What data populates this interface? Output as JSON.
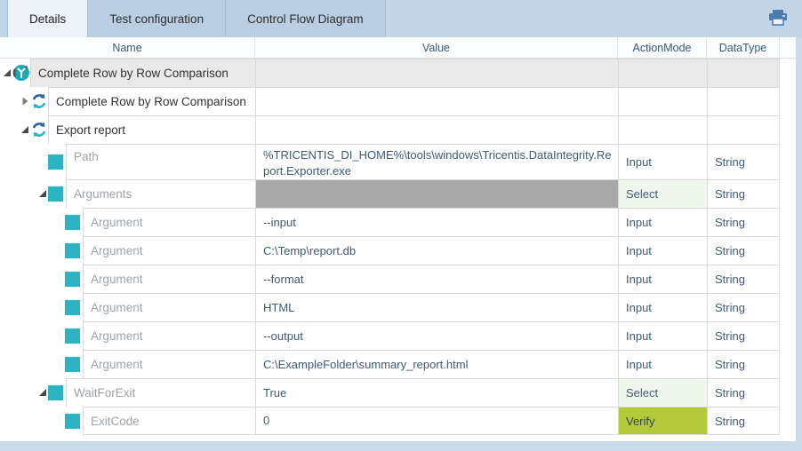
{
  "tabs": [
    {
      "label": "Details",
      "active": true
    },
    {
      "label": "Test configuration",
      "active": false
    },
    {
      "label": "Control Flow Diagram",
      "active": false
    }
  ],
  "toolbar": {
    "print_icon": "printer-icon"
  },
  "colors": {
    "accent_teal": "#2cb4c4",
    "verify_green": "#b4ca3a",
    "select_green_bg": "#f0f8ee",
    "selected_value_gray": "#a8a8a8",
    "group_row_gray": "#e9e9e9",
    "tab_bar_blue": "#c3d6e8",
    "refresh_blue": "#2a67a5"
  },
  "grid": {
    "columns": [
      "Name",
      "Value",
      "ActionMode",
      "DataType"
    ],
    "rows": [
      {
        "level": 0,
        "icon": "flow-icon",
        "expander": "expanded",
        "name": "Complete Row by Row Comparison",
        "value": "",
        "actionMode": "",
        "dataType": "",
        "nameStyle": "dark",
        "rowStyle": "group-header"
      },
      {
        "level": 1,
        "icon": "refresh-icon",
        "expander": "collapsed",
        "name": "Complete Row by Row Comparison",
        "value": "",
        "actionMode": "",
        "dataType": "",
        "nameStyle": "dark"
      },
      {
        "level": 1,
        "icon": "refresh-icon",
        "expander": "expanded",
        "name": "Export report",
        "value": "",
        "actionMode": "",
        "dataType": "",
        "nameStyle": "dark"
      },
      {
        "level": 2,
        "icon": "value-square-icon",
        "expander": null,
        "name": "Path",
        "value": "%TRICENTIS_DI_HOME%\\tools\\windows\\Tricentis.DataIntegrity.Report.Exporter.exe",
        "actionMode": "Input",
        "dataType": "String",
        "nameStyle": "muted",
        "tall": true
      },
      {
        "level": 2,
        "icon": "value-square-icon",
        "expander": "expanded",
        "name": "Arguments",
        "value": "",
        "actionMode": "Select",
        "dataType": "String",
        "nameStyle": "muted",
        "valueStyle": "grayfill",
        "actionStyle": "select"
      },
      {
        "level": 3,
        "icon": "value-square-icon",
        "expander": null,
        "name": "Argument",
        "value": "--input",
        "actionMode": "Input",
        "dataType": "String",
        "nameStyle": "muted"
      },
      {
        "level": 3,
        "icon": "value-square-icon",
        "expander": null,
        "name": "Argument",
        "value": "C:\\Temp\\report.db",
        "actionMode": "Input",
        "dataType": "String",
        "nameStyle": "muted"
      },
      {
        "level": 3,
        "icon": "value-square-icon",
        "expander": null,
        "name": "Argument",
        "value": "--format",
        "actionMode": "Input",
        "dataType": "String",
        "nameStyle": "muted"
      },
      {
        "level": 3,
        "icon": "value-square-icon",
        "expander": null,
        "name": "Argument",
        "value": "HTML",
        "actionMode": "Input",
        "dataType": "String",
        "nameStyle": "muted"
      },
      {
        "level": 3,
        "icon": "value-square-icon",
        "expander": null,
        "name": "Argument",
        "value": "--output",
        "actionMode": "Input",
        "dataType": "String",
        "nameStyle": "muted"
      },
      {
        "level": 3,
        "icon": "value-square-icon",
        "expander": null,
        "name": "Argument",
        "value": "C:\\ExampleFolder\\summary_report.html",
        "actionMode": "Input",
        "dataType": "String",
        "nameStyle": "muted"
      },
      {
        "level": 2,
        "icon": "value-square-icon",
        "expander": "expanded",
        "name": "WaitForExit",
        "value": "True",
        "actionMode": "Select",
        "dataType": "String",
        "nameStyle": "muted",
        "actionStyle": "select"
      },
      {
        "level": 3,
        "icon": "value-square-icon",
        "expander": null,
        "name": "ExitCode",
        "value": "0",
        "actionMode": "Verify",
        "dataType": "String",
        "nameStyle": "muted",
        "actionStyle": "verify"
      }
    ]
  }
}
